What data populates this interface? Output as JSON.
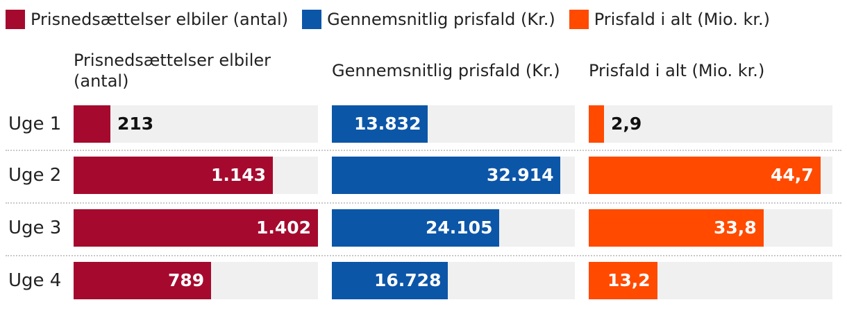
{
  "chart_data": {
    "type": "bar",
    "orientation": "horizontal",
    "categories": [
      "Uge 1",
      "Uge 2",
      "Uge 3",
      "Uge 4"
    ],
    "series": [
      {
        "name": "Prisnedsættelser elbiler (antal)",
        "panel_title": "Prisnedsættelser elbiler\n(antal)",
        "color": "#a50a2e",
        "values": [
          213,
          1143,
          1402,
          789
        ],
        "labels": [
          "213",
          "1.143",
          "1.402",
          "789"
        ],
        "max": 1402
      },
      {
        "name": "Gennemsnitlig prisfald (Kr.)",
        "panel_title": "Gennemsnitlig prisfald (Kr.)",
        "color": "#0c56a8",
        "values": [
          13832,
          32914,
          24105,
          16728
        ],
        "labels": [
          "13.832",
          "32.914",
          "24.105",
          "16.728"
        ],
        "max": 35000
      },
      {
        "name": "Prisfald i alt (Mio. kr.)",
        "panel_title": "Prisfald i alt (Mio. kr.)",
        "color": "#ff4a00",
        "values": [
          2.9,
          44.7,
          33.8,
          13.2
        ],
        "labels": [
          "2,9",
          "44,7",
          "33,8",
          "13,2"
        ],
        "max": 47
      }
    ]
  }
}
